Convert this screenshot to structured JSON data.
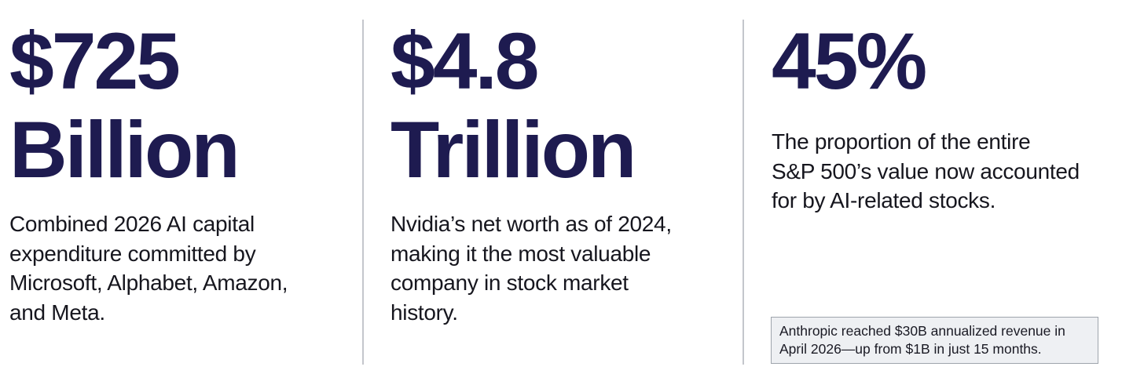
{
  "stats": [
    {
      "headline_lines": [
        "$725",
        "Billion"
      ],
      "description_lines": [
        "Combined 2026 AI capital",
        "expenditure committed by",
        "Microsoft, Alphabet, Amazon,",
        "and Meta."
      ]
    },
    {
      "headline_lines": [
        "$4.8",
        "Trillion"
      ],
      "description_lines": [
        "Nvidia’s net worth as of 2024,",
        "making it the most valuable",
        "company in stock market",
        "history."
      ]
    },
    {
      "headline_lines": [
        "45%"
      ],
      "description_lines": [
        "The proportion of the entire",
        "S&P 500’s value now accounted",
        "for by AI-related stocks."
      ]
    }
  ],
  "note": {
    "lines": [
      "Anthropic reached $30B annualized revenue in",
      "April 2026—up from $1B in just 15 months."
    ]
  }
}
